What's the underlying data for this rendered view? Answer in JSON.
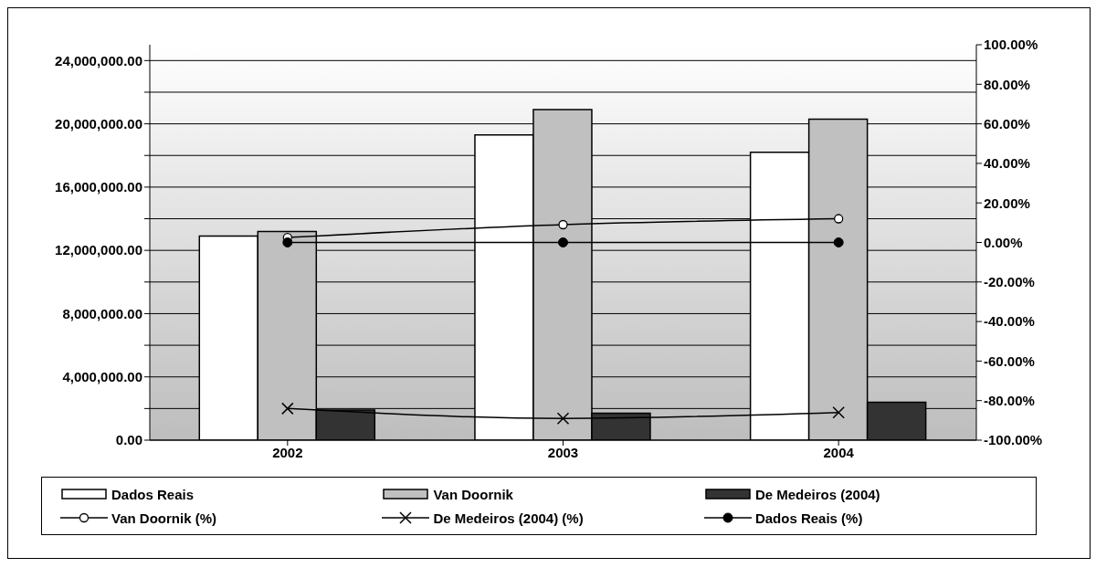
{
  "chart_data": {
    "type": "bar",
    "categories": [
      "2002",
      "2003",
      "2004"
    ],
    "series": [
      {
        "name": "Dados Reais",
        "color": "#ffffff",
        "values": [
          12900000,
          19300000,
          18200000
        ]
      },
      {
        "name": "Van Doornik",
        "color": "#c0c0c0",
        "values": [
          13200000,
          20900000,
          20300000
        ]
      },
      {
        "name": "De Medeiros (2004)",
        "color": "#333333",
        "values": [
          1900000,
          1700000,
          2400000
        ]
      },
      {
        "name": "Van Doornik (%)",
        "type": "line",
        "axis": "y2",
        "color": "#000000",
        "marker": "circle",
        "values": [
          2.5,
          9,
          12
        ]
      },
      {
        "name": "De Medeiros (2004) (%)",
        "type": "line",
        "axis": "y2",
        "color": "#000000",
        "marker": "cross",
        "values": [
          -84,
          -89,
          -86
        ]
      },
      {
        "name": "Dados Reais (%)",
        "type": "line",
        "axis": "y2",
        "color": "#000000",
        "marker": "filled-circle",
        "values": [
          0,
          0,
          0
        ]
      }
    ],
    "ylim": [
      0,
      25000000
    ],
    "yticks": [
      {
        "value": 0,
        "label": "0.00"
      },
      {
        "value": 2000000,
        "label": null
      },
      {
        "value": 4000000,
        "label": "4,000,000.00"
      },
      {
        "value": 6000000,
        "label": null
      },
      {
        "value": 8000000,
        "label": "8,000,000.00"
      },
      {
        "value": 10000000,
        "label": null
      },
      {
        "value": 12000000,
        "label": "12,000,000.00"
      },
      {
        "value": 14000000,
        "label": null
      },
      {
        "value": 16000000,
        "label": "16,000,000.00"
      },
      {
        "value": 18000000,
        "label": null
      },
      {
        "value": 20000000,
        "label": "20,000,000.00"
      },
      {
        "value": 22000000,
        "label": null
      },
      {
        "value": 24000000,
        "label": "24,000,000.00"
      }
    ],
    "y2lim": [
      -100,
      100
    ],
    "y2ticks": [
      {
        "value": -100,
        "label": "-100.00%"
      },
      {
        "value": -80,
        "label": "-80.00%"
      },
      {
        "value": -60,
        "label": "-60.00%"
      },
      {
        "value": -40,
        "label": "-40.00%"
      },
      {
        "value": -20,
        "label": "-20.00%"
      },
      {
        "value": 0,
        "label": "0.00%"
      },
      {
        "value": 20,
        "label": "20.00%"
      },
      {
        "value": 40,
        "label": "40.00%"
      },
      {
        "value": 60,
        "label": "60.00%"
      },
      {
        "value": 80,
        "label": "80.00%"
      },
      {
        "value": 100,
        "label": "100.00%"
      }
    ],
    "grid": "y",
    "legend": "bottom",
    "line_style": "solid"
  }
}
